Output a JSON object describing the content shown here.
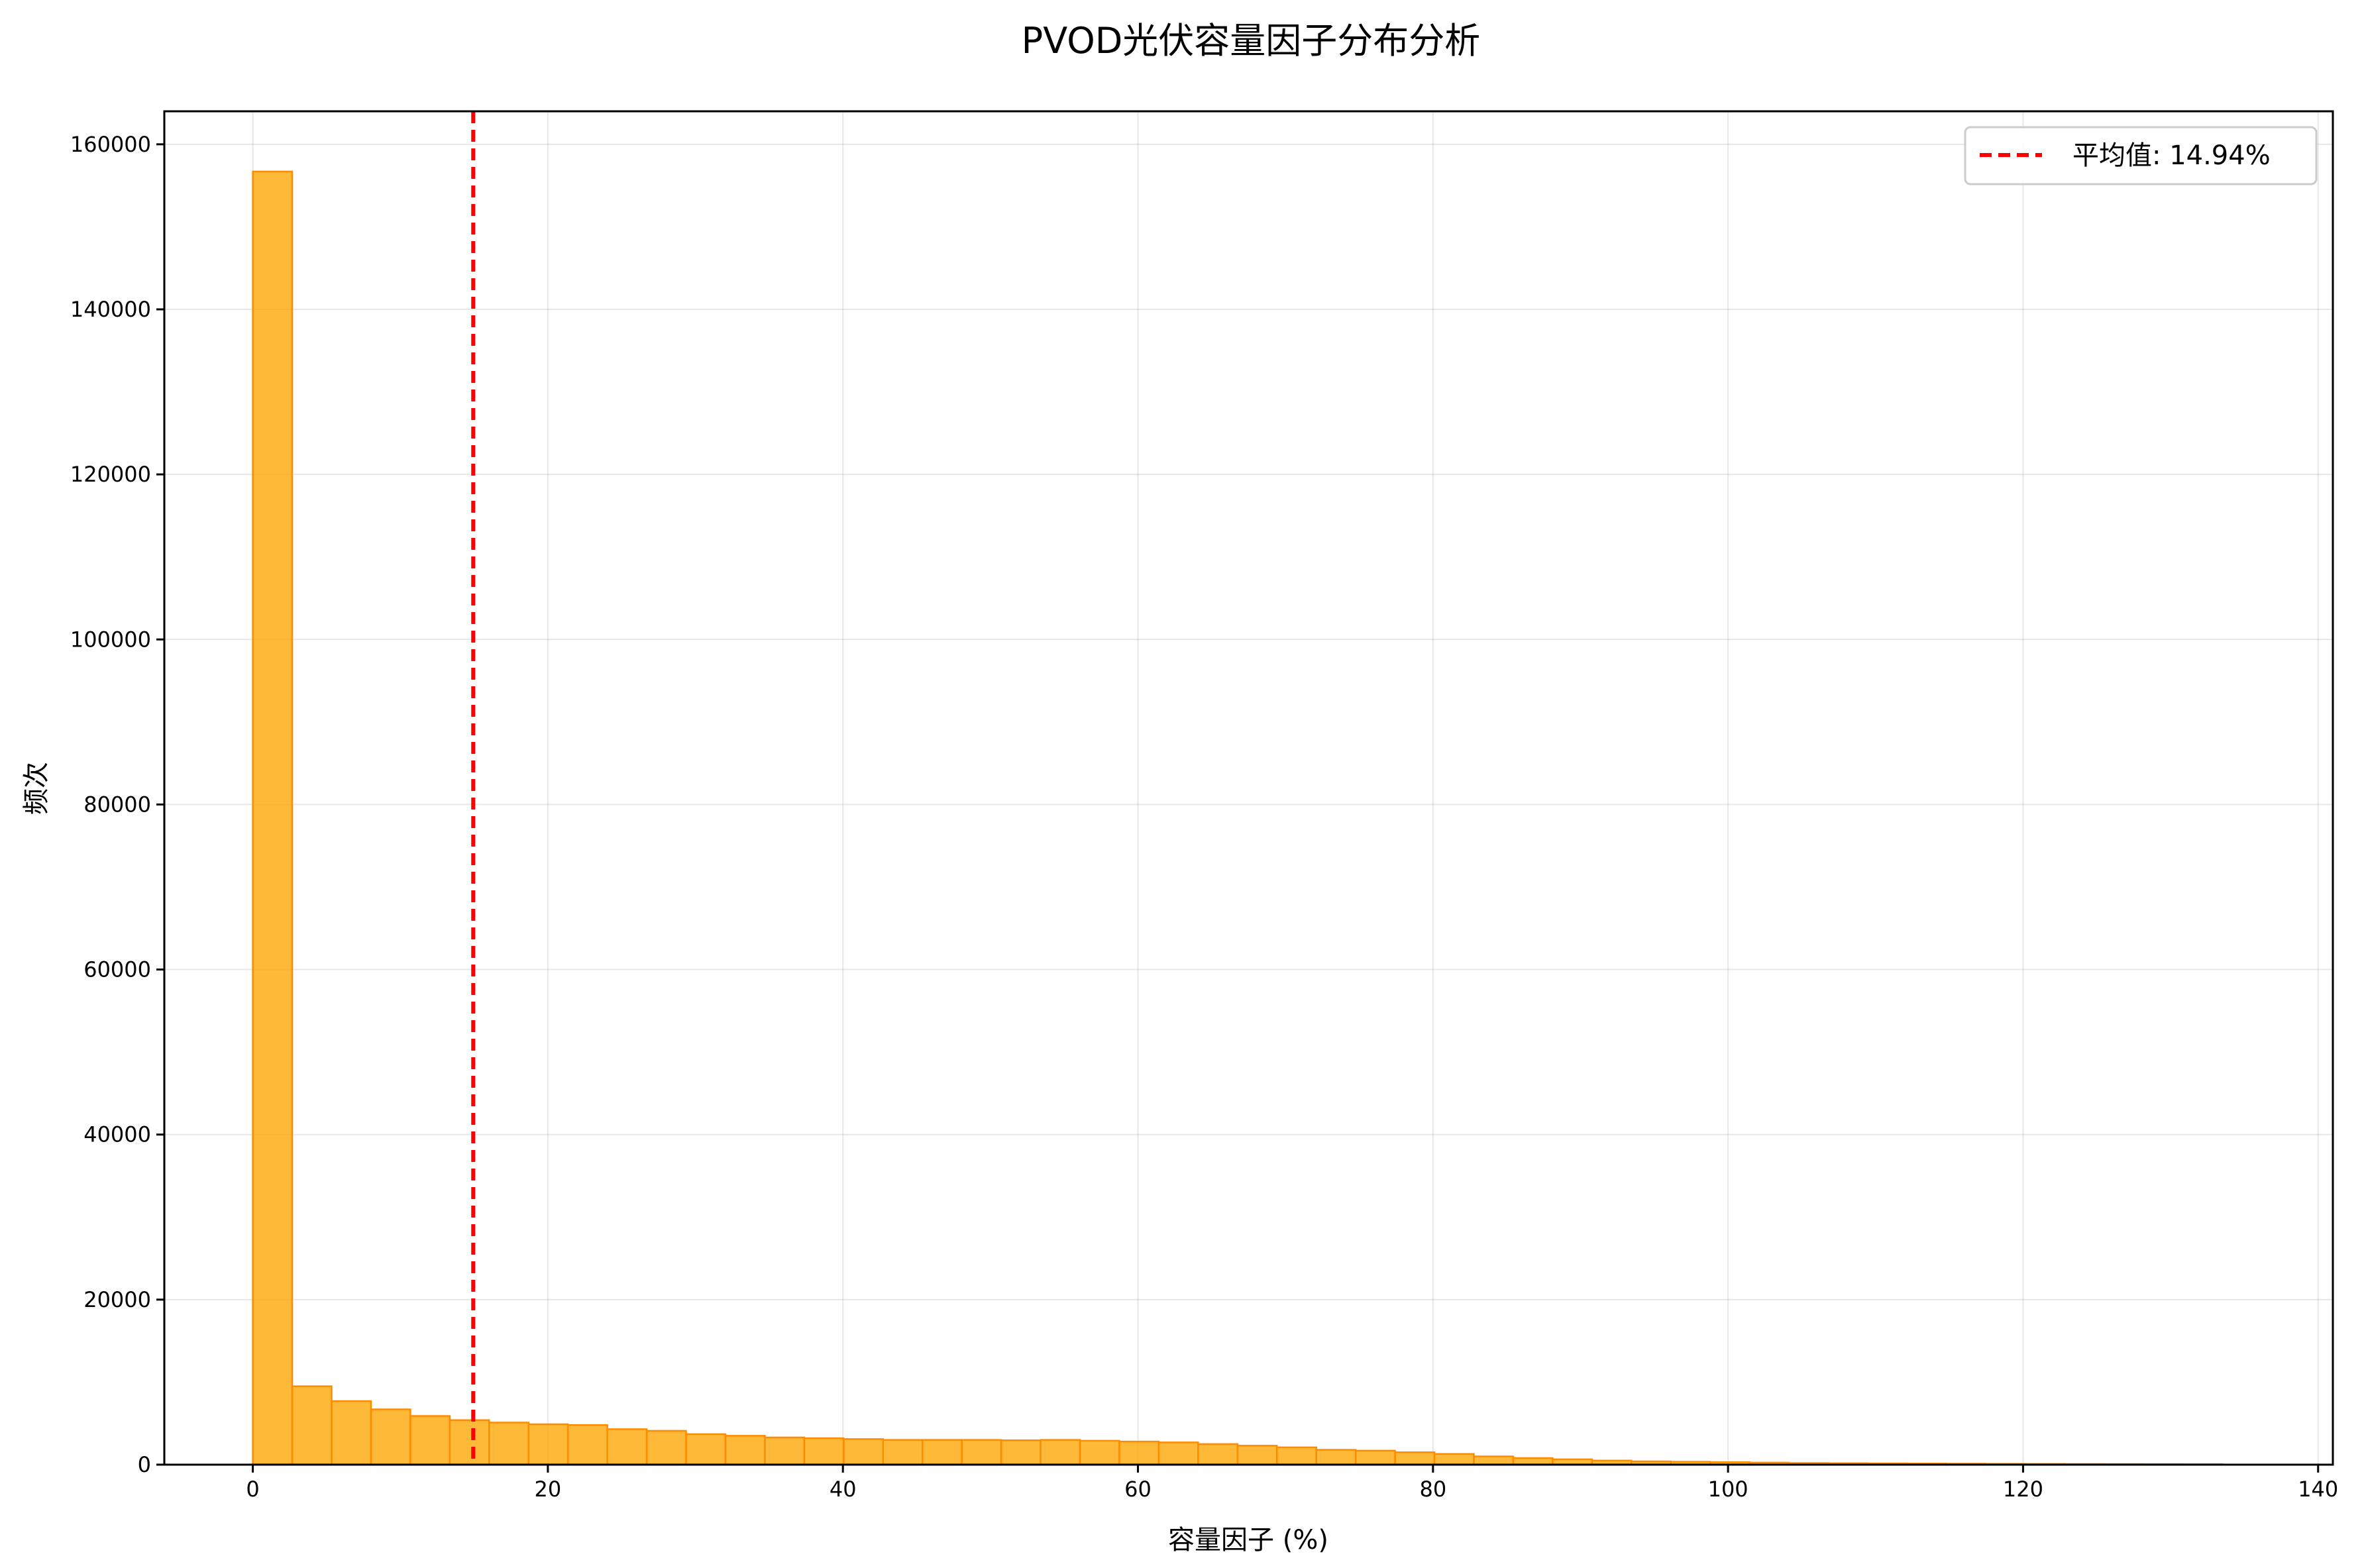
{
  "chart_data": {
    "type": "bar",
    "title": "PVOD光伏容量因子分布分析",
    "xlabel": "容量因子 (%)",
    "ylabel": "频次",
    "xlim": [
      -6,
      141
    ],
    "ylim": [
      0,
      164000
    ],
    "xticks": [
      0,
      20,
      40,
      60,
      80,
      100,
      120,
      140
    ],
    "yticks": [
      0,
      20000,
      40000,
      60000,
      80000,
      100000,
      120000,
      140000,
      160000
    ],
    "grid": true,
    "bin_start": 0,
    "bin_width": 2.67,
    "values": [
      156700,
      9500,
      7700,
      6700,
      5900,
      5400,
      5100,
      4900,
      4800,
      4300,
      4100,
      3700,
      3500,
      3300,
      3200,
      3100,
      3000,
      3000,
      3000,
      2950,
      3000,
      2900,
      2800,
      2700,
      2500,
      2300,
      2100,
      1800,
      1700,
      1500,
      1300,
      1000,
      800,
      650,
      500,
      400,
      350,
      300,
      250,
      200,
      180,
      160,
      140,
      120,
      100,
      90,
      80,
      70,
      60,
      50
    ],
    "bar_color": "#FFA500",
    "bar_edge_color": "#FF8C00",
    "mean_line": {
      "value": 14.94,
      "label": "平均值: 14.94%",
      "color": "#FF0000"
    },
    "legend_position": "top-right"
  }
}
